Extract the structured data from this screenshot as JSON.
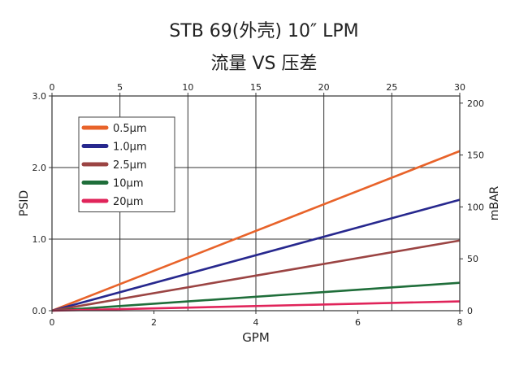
{
  "chart_data": {
    "type": "line",
    "title": "STB 69(外壳)  10″   LPM",
    "subtitle": "流量 VS 压差",
    "xlabel": "GPM",
    "ylabel": "PSID",
    "y2label": "mBAR",
    "x": [
      0,
      8
    ],
    "xlim": [
      0,
      8
    ],
    "ylim": [
      0,
      3
    ],
    "x_ticks": [
      "0",
      "2",
      "4",
      "6",
      "8"
    ],
    "y_ticks": [
      "0.0",
      "1.0",
      "2.0",
      "3.0"
    ],
    "x2_ticks": [
      "0",
      "5",
      "10",
      "15",
      "20",
      "25",
      "30"
    ],
    "x2lim": [
      0,
      30
    ],
    "y2_ticks": [
      "0",
      "50",
      "100",
      "150",
      "200"
    ],
    "y2lim": [
      0,
      206.9
    ],
    "grid": true,
    "legend_position": "top-left",
    "series": [
      {
        "name": "0.5μm",
        "color": "#e8632a",
        "values": [
          0,
          2.23
        ]
      },
      {
        "name": "1.0μm",
        "color": "#27288e",
        "values": [
          0,
          1.55
        ]
      },
      {
        "name": "2.5μm",
        "color": "#9b4443",
        "values": [
          0,
          0.98
        ]
      },
      {
        "name": "10μm",
        "color": "#1f6e3a",
        "values": [
          0,
          0.39
        ]
      },
      {
        "name": "20μm",
        "color": "#e0245a",
        "values": [
          0,
          0.13
        ]
      }
    ]
  }
}
